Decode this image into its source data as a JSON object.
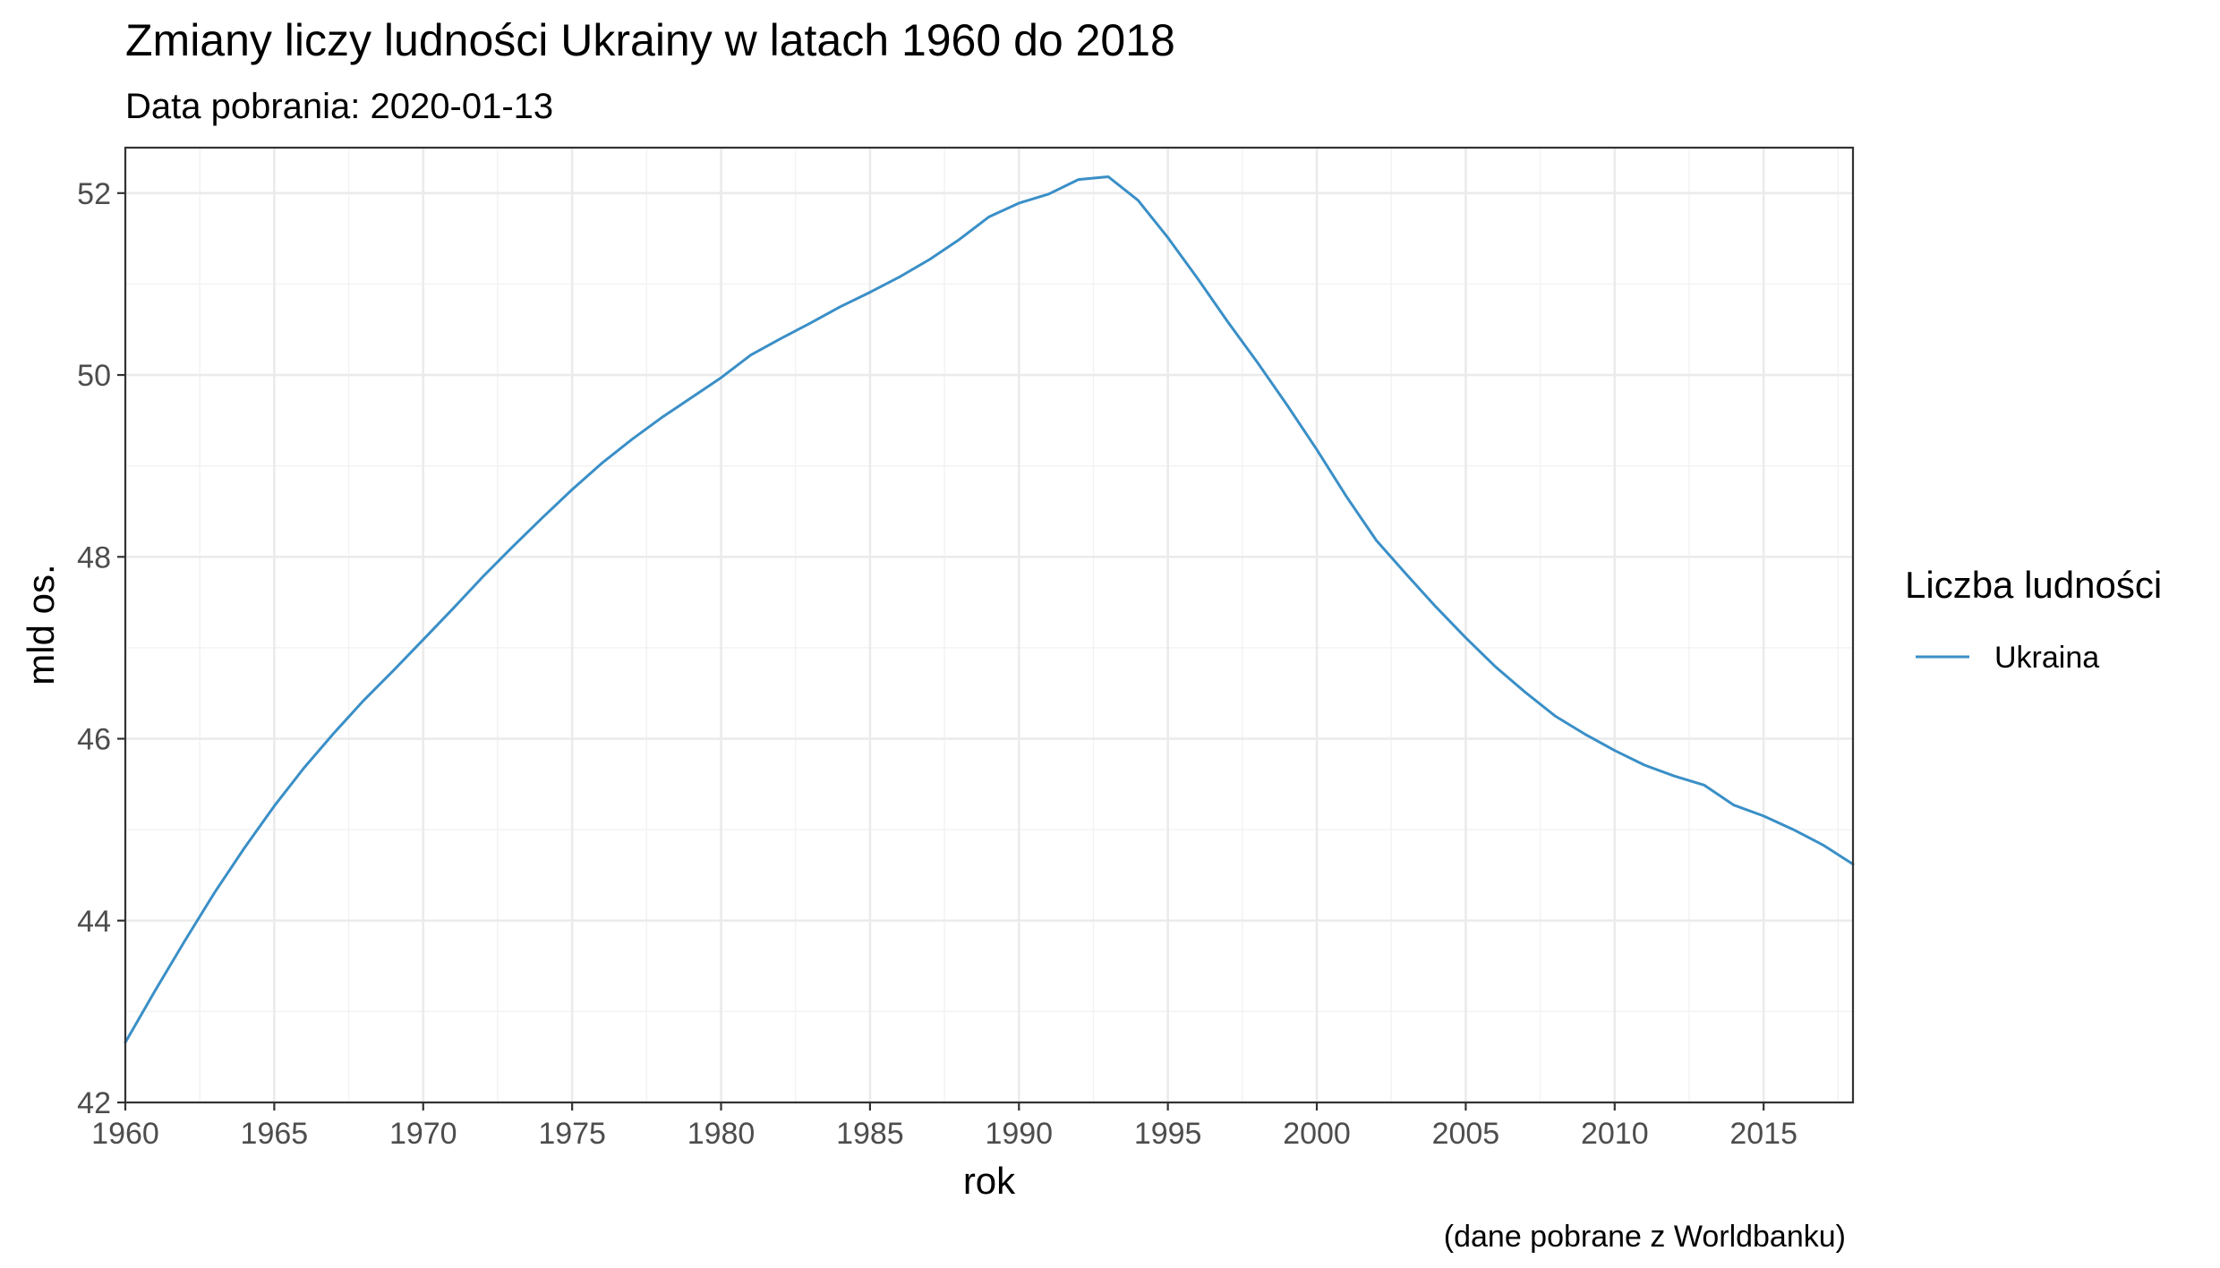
{
  "chart_data": {
    "type": "line",
    "title": "Zmiany liczy ludności Ukrainy w latach 1960 do 2018",
    "subtitle": "Data pobrania: 2020-01-13",
    "xlabel": "rok",
    "ylabel": "mld os.",
    "caption": "(dane pobrane z Worldbanku)",
    "xlim": [
      1960,
      2018
    ],
    "ylim": [
      42,
      52.5
    ],
    "x_ticks": [
      1960,
      1965,
      1970,
      1975,
      1980,
      1985,
      1990,
      1995,
      2000,
      2005,
      2010,
      2015
    ],
    "y_ticks": [
      42,
      44,
      46,
      48,
      50,
      52
    ],
    "grid": true,
    "legend": {
      "title": "Liczba ludności",
      "position": "right"
    },
    "series": [
      {
        "name": "Ukraina",
        "color": "#3a8fc7",
        "x": [
          1960,
          1961,
          1962,
          1963,
          1964,
          1965,
          1966,
          1967,
          1968,
          1969,
          1970,
          1971,
          1972,
          1973,
          1974,
          1975,
          1976,
          1977,
          1978,
          1979,
          1980,
          1981,
          1982,
          1983,
          1984,
          1985,
          1986,
          1987,
          1988,
          1989,
          1990,
          1991,
          1992,
          1993,
          1994,
          1995,
          1996,
          1997,
          1998,
          1999,
          2000,
          2001,
          2002,
          2003,
          2004,
          2005,
          2006,
          2007,
          2008,
          2009,
          2010,
          2011,
          2012,
          2013,
          2014,
          2015,
          2016,
          2017,
          2018
        ],
        "values": [
          42.66,
          43.23,
          43.78,
          44.31,
          44.8,
          45.26,
          45.68,
          46.06,
          46.42,
          46.75,
          47.09,
          47.43,
          47.78,
          48.11,
          48.43,
          48.74,
          49.03,
          49.29,
          49.53,
          49.75,
          49.97,
          50.22,
          50.4,
          50.57,
          50.75,
          50.91,
          51.08,
          51.27,
          51.49,
          51.74,
          51.89,
          51.99,
          52.15,
          52.18,
          51.92,
          51.51,
          51.06,
          50.59,
          50.14,
          49.67,
          49.18,
          48.66,
          48.18,
          47.81,
          47.45,
          47.11,
          46.79,
          46.51,
          46.25,
          46.05,
          45.87,
          45.71,
          45.59,
          45.49,
          45.27,
          45.15,
          45.0,
          44.83,
          44.62
        ]
      }
    ]
  }
}
